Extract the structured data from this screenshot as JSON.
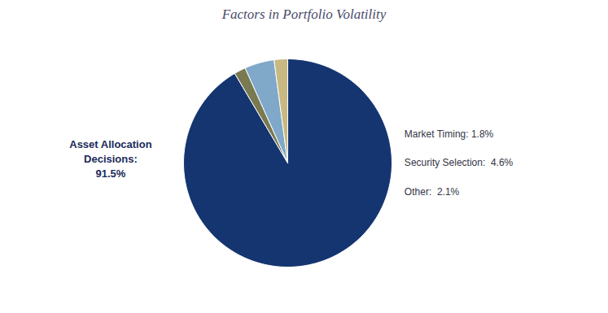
{
  "chart_data": {
    "type": "pie",
    "title": "Factors in Portfolio Volatility",
    "categories": [
      "Asset Allocation\nDecisions:\n91.5%",
      "Market Timing: 1.8%",
      "Security Selection:  4.6%",
      "Other:  2.1%"
    ],
    "values": [
      91.5,
      1.8,
      4.6,
      2.1
    ],
    "colors": [
      "#143570",
      "#7a7a52",
      "#7fa8c9",
      "#c8b882"
    ]
  }
}
